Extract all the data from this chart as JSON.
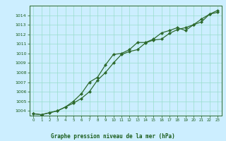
{
  "title": "Graphe pression niveau de la mer (hPa)",
  "x": [
    0,
    1,
    2,
    3,
    4,
    5,
    6,
    7,
    8,
    9,
    10,
    11,
    12,
    13,
    14,
    15,
    16,
    17,
    18,
    19,
    20,
    21,
    22,
    23
  ],
  "line1": [
    1003.7,
    1003.6,
    1003.8,
    1004.0,
    1004.4,
    1004.8,
    1005.3,
    1006.0,
    1007.2,
    1008.0,
    1009.0,
    1009.9,
    1010.2,
    1010.4,
    1011.1,
    1011.4,
    1011.5,
    1012.1,
    1012.5,
    1012.7,
    1013.0,
    1013.3,
    1014.1,
    1014.3
  ],
  "line2": [
    1003.7,
    1003.6,
    1003.8,
    1004.0,
    1004.4,
    1005.0,
    1005.8,
    1007.0,
    1007.5,
    1008.8,
    1009.9,
    1010.0,
    1010.4,
    1011.15,
    1011.15,
    1011.5,
    1012.15,
    1012.4,
    1012.7,
    1012.4,
    1013.0,
    1013.6,
    1014.1,
    1014.5
  ],
  "ylim": [
    1003.5,
    1015.0
  ],
  "xlim": [
    -0.5,
    23.5
  ],
  "yticks": [
    1004,
    1005,
    1006,
    1007,
    1008,
    1009,
    1010,
    1011,
    1012,
    1013,
    1014
  ],
  "xticks": [
    0,
    1,
    2,
    3,
    4,
    5,
    6,
    7,
    8,
    9,
    10,
    11,
    12,
    13,
    14,
    15,
    16,
    17,
    18,
    19,
    20,
    21,
    22,
    23
  ],
  "line_color": "#2d6a2d",
  "bg_color": "#cceeff",
  "grid_color": "#99ddcc",
  "title_color": "#1a5c1a",
  "tick_color": "#1a5c1a",
  "marker": "D",
  "marker_size": 2.0,
  "line_width": 0.9
}
